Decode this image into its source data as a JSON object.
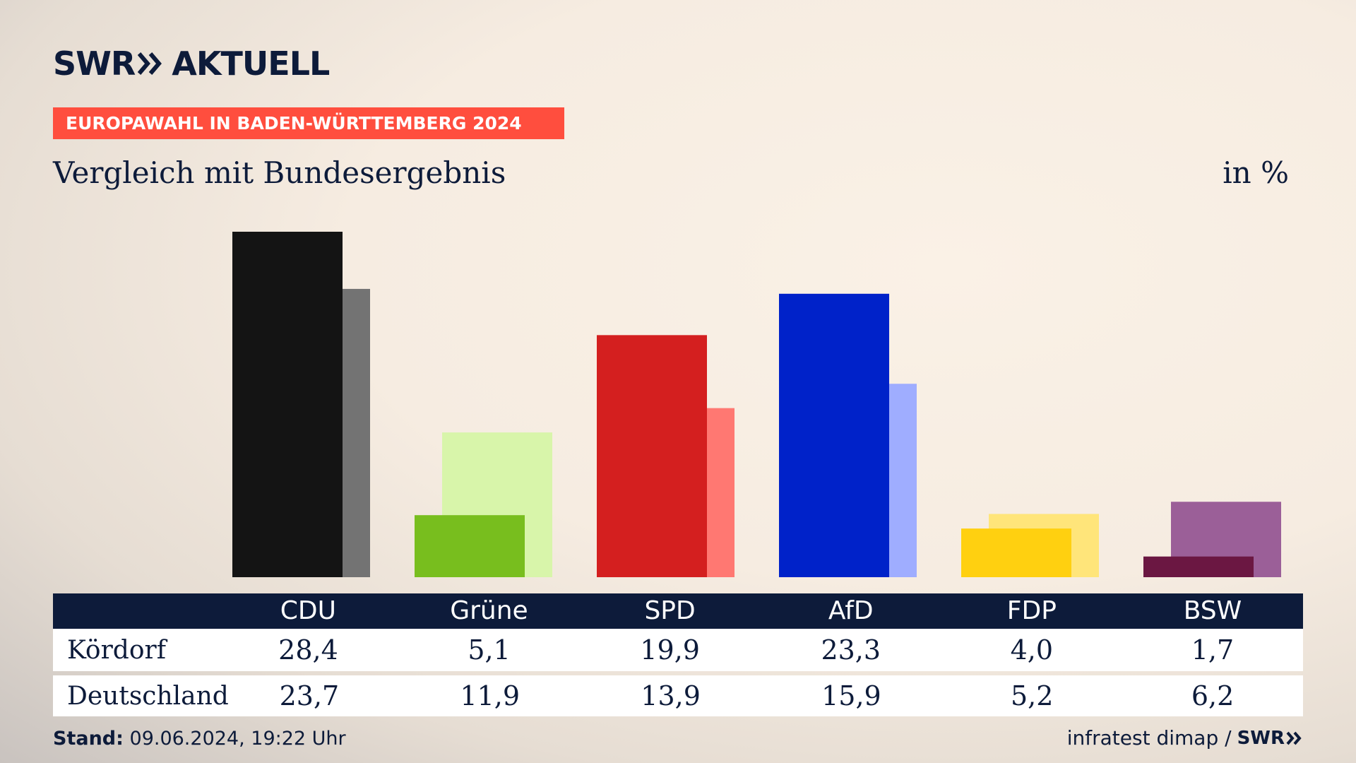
{
  "header": {
    "logo_swr": "SWR",
    "logo_aktuell": "AKTUELL",
    "tag": "EUROPAWAHL IN BADEN-WÜRTTEMBERG 2024",
    "subtitle": "Vergleich mit Bundesergebnis",
    "unit": "in %"
  },
  "chart_data": {
    "type": "bar",
    "title": "Vergleich mit Bundesergebnis",
    "categories": [
      "CDU",
      "Grüne",
      "SPD",
      "AfD",
      "FDP",
      "BSW"
    ],
    "series": [
      {
        "name": "Kördorf",
        "values": [
          28.4,
          5.1,
          19.9,
          23.3,
          4.0,
          1.7
        ],
        "values_text": [
          "28,4",
          "5,1",
          "19,9",
          "23,3",
          "4,0",
          "1,7"
        ]
      },
      {
        "name": "Deutschland",
        "values": [
          23.7,
          11.9,
          13.9,
          15.9,
          5.2,
          6.2
        ],
        "values_text": [
          "23,7",
          "11,9",
          "13,9",
          "15,9",
          "5,2",
          "6,2"
        ]
      }
    ],
    "colors_primary": [
      "#141414",
      "#78be1e",
      "#d41f1f",
      "#0022c9",
      "#ffd010",
      "#6b1742"
    ],
    "colors_secondary": [
      "#737373",
      "#d8f5aa",
      "#ff7872",
      "#9fadff",
      "#ffe57a",
      "#9b5f98"
    ],
    "ylim": [
      0,
      28.4
    ],
    "grid": false,
    "legend": "table-below"
  },
  "footer": {
    "stand_label": "Stand:",
    "stand_value": "09.06.2024, 19:22 Uhr",
    "source": "infratest dimap /",
    "source_logo": "SWR"
  }
}
